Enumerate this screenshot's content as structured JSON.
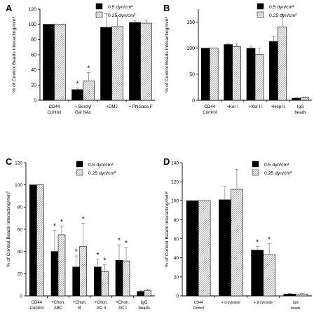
{
  "figure": {
    "ylabel": "% of Control Beads Interacting/mm²"
  },
  "chart_data": [
    {
      "type": "bar",
      "panel_label": "A",
      "ylabel": "% of Control Beads Interacting/mm²",
      "ylim": [
        0,
        120
      ],
      "yticks": [
        0,
        20,
        40,
        60,
        80,
        100,
        120
      ],
      "categories": [
        [
          "CD44",
          "Control"
        ],
        [
          "+ Benzyl",
          "Gal NAc"
        ],
        [
          "+DMJ"
        ],
        [
          "+ PNGase F"
        ]
      ],
      "series": [
        {
          "name": "0.5 dyn/cm²",
          "values": [
            100,
            14,
            96,
            102.5
          ],
          "errors": [
            0,
            2,
            18,
            2
          ]
        },
        {
          "name": "0.25 dyn/cm²",
          "values": [
            100,
            25.5,
            97,
            101.5
          ],
          "errors": [
            0,
            11,
            14,
            4
          ]
        }
      ],
      "significance": [
        null,
        [
          "*",
          "*"
        ],
        null,
        null
      ],
      "legend_position": "top-right"
    },
    {
      "type": "bar",
      "panel_label": "B",
      "ylabel": "% of Control Beads Interacting/mm²",
      "ylim": [
        0,
        175
      ],
      "yticks": [
        0,
        50,
        100,
        150
      ],
      "categories": [
        [
          "CD44",
          "Control"
        ],
        [
          "+Ker I"
        ],
        [
          "+Ker II"
        ],
        [
          "+Hep II"
        ],
        [
          "IgG",
          "beads"
        ]
      ],
      "series": [
        {
          "name": "0.5 dyn/cm²",
          "values": [
            100,
            107,
            100,
            113,
            4
          ],
          "errors": [
            0,
            2,
            4,
            10,
            1
          ]
        },
        {
          "name": "0.25 dyn/cm²",
          "values": [
            100,
            103,
            88,
            141,
            5
          ],
          "errors": [
            0,
            5,
            12,
            24,
            1
          ]
        }
      ],
      "legend_position": "top-right"
    },
    {
      "type": "bar",
      "panel_label": "C",
      "ylabel": "% of Control Beads Interacting/mm²",
      "ylim": [
        0,
        120
      ],
      "yticks": [
        0,
        20,
        40,
        60,
        80,
        100,
        120
      ],
      "categories": [
        [
          "CD44",
          "Control"
        ],
        [
          "+Chon.",
          "ABC"
        ],
        [
          "+Chon.",
          "B"
        ],
        [
          "+Chon.",
          "AC II"
        ],
        [
          "+Chon.",
          "AC I"
        ],
        [
          "IgG",
          "beads"
        ]
      ],
      "series": [
        {
          "name": "0.5 dyn/cm²",
          "values": [
            100,
            40,
            26,
            26,
            32,
            4
          ],
          "errors": [
            0,
            19,
            10,
            7,
            14,
            1
          ]
        },
        {
          "name": "0.25 dyn/cm²",
          "values": [
            100,
            55,
            44.5,
            22,
            31.5,
            5
          ],
          "errors": [
            0,
            8,
            21,
            6,
            12,
            1
          ]
        }
      ],
      "significance": [
        null,
        [
          "*",
          "*"
        ],
        [
          "*",
          "*"
        ],
        [
          "*",
          "*"
        ],
        [
          "*",
          "*"
        ],
        null
      ],
      "legend_position": "top-right"
    },
    {
      "type": "bar",
      "panel_label": "D",
      "ylabel": "% of Control Beads Interacting/mm²",
      "ylim": [
        0,
        140
      ],
      "yticks": [
        0,
        20,
        40,
        60,
        80,
        100,
        120,
        140
      ],
      "categories": [
        [
          "CD44",
          "Control"
        ],
        [
          "+ α-xyloside"
        ],
        [
          "+ β-xyloside"
        ],
        [
          "IgG",
          "beads"
        ]
      ],
      "series": [
        {
          "name": "0.5 dyn/cm²",
          "values": [
            100,
            101,
            48,
            2
          ],
          "errors": [
            0,
            14,
            4,
            0.5
          ]
        },
        {
          "name": "0.25 dyn/cm²",
          "values": [
            100,
            112,
            43,
            2
          ],
          "errors": [
            0,
            21,
            12,
            0.5
          ]
        }
      ],
      "significance": [
        null,
        null,
        [
          "*",
          "*"
        ],
        null
      ],
      "legend_position": "top-right"
    }
  ]
}
